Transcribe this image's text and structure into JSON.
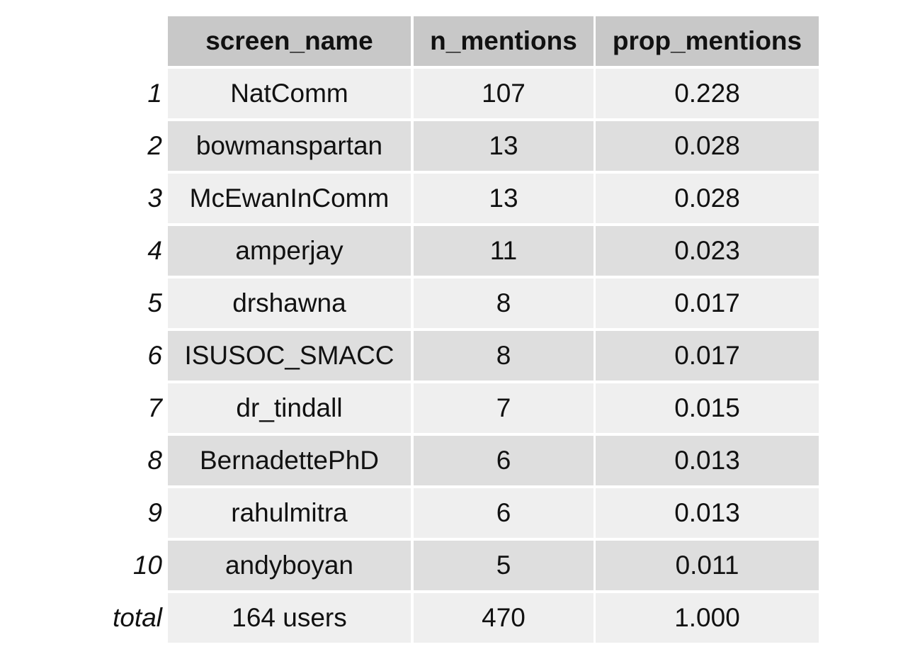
{
  "chart_data": {
    "type": "table",
    "columns": [
      "screen_name",
      "n_mentions",
      "prop_mentions"
    ],
    "rows": [
      {
        "label": "1",
        "cells": [
          "NatComm",
          "107",
          "0.228"
        ]
      },
      {
        "label": "2",
        "cells": [
          "bowmanspartan",
          "13",
          "0.028"
        ]
      },
      {
        "label": "3",
        "cells": [
          "McEwanInComm",
          "13",
          "0.028"
        ]
      },
      {
        "label": "4",
        "cells": [
          "amperjay",
          "11",
          "0.023"
        ]
      },
      {
        "label": "5",
        "cells": [
          "drshawna",
          "8",
          "0.017"
        ]
      },
      {
        "label": "6",
        "cells": [
          "ISUSOC_SMACC",
          "8",
          "0.017"
        ]
      },
      {
        "label": "7",
        "cells": [
          "dr_tindall",
          "7",
          "0.015"
        ]
      },
      {
        "label": "8",
        "cells": [
          "BernadettePhD",
          "6",
          "0.013"
        ]
      },
      {
        "label": "9",
        "cells": [
          "rahulmitra",
          "6",
          "0.013"
        ]
      },
      {
        "label": "10",
        "cells": [
          "andyboyan",
          "5",
          "0.011"
        ]
      },
      {
        "label": "total",
        "cells": [
          "164 users",
          "470",
          "1.000"
        ]
      }
    ],
    "colors": {
      "header_bg": "#c8c8c8",
      "row_odd_bg": "#efefef",
      "row_even_bg": "#dedede",
      "text": "#111111"
    }
  }
}
